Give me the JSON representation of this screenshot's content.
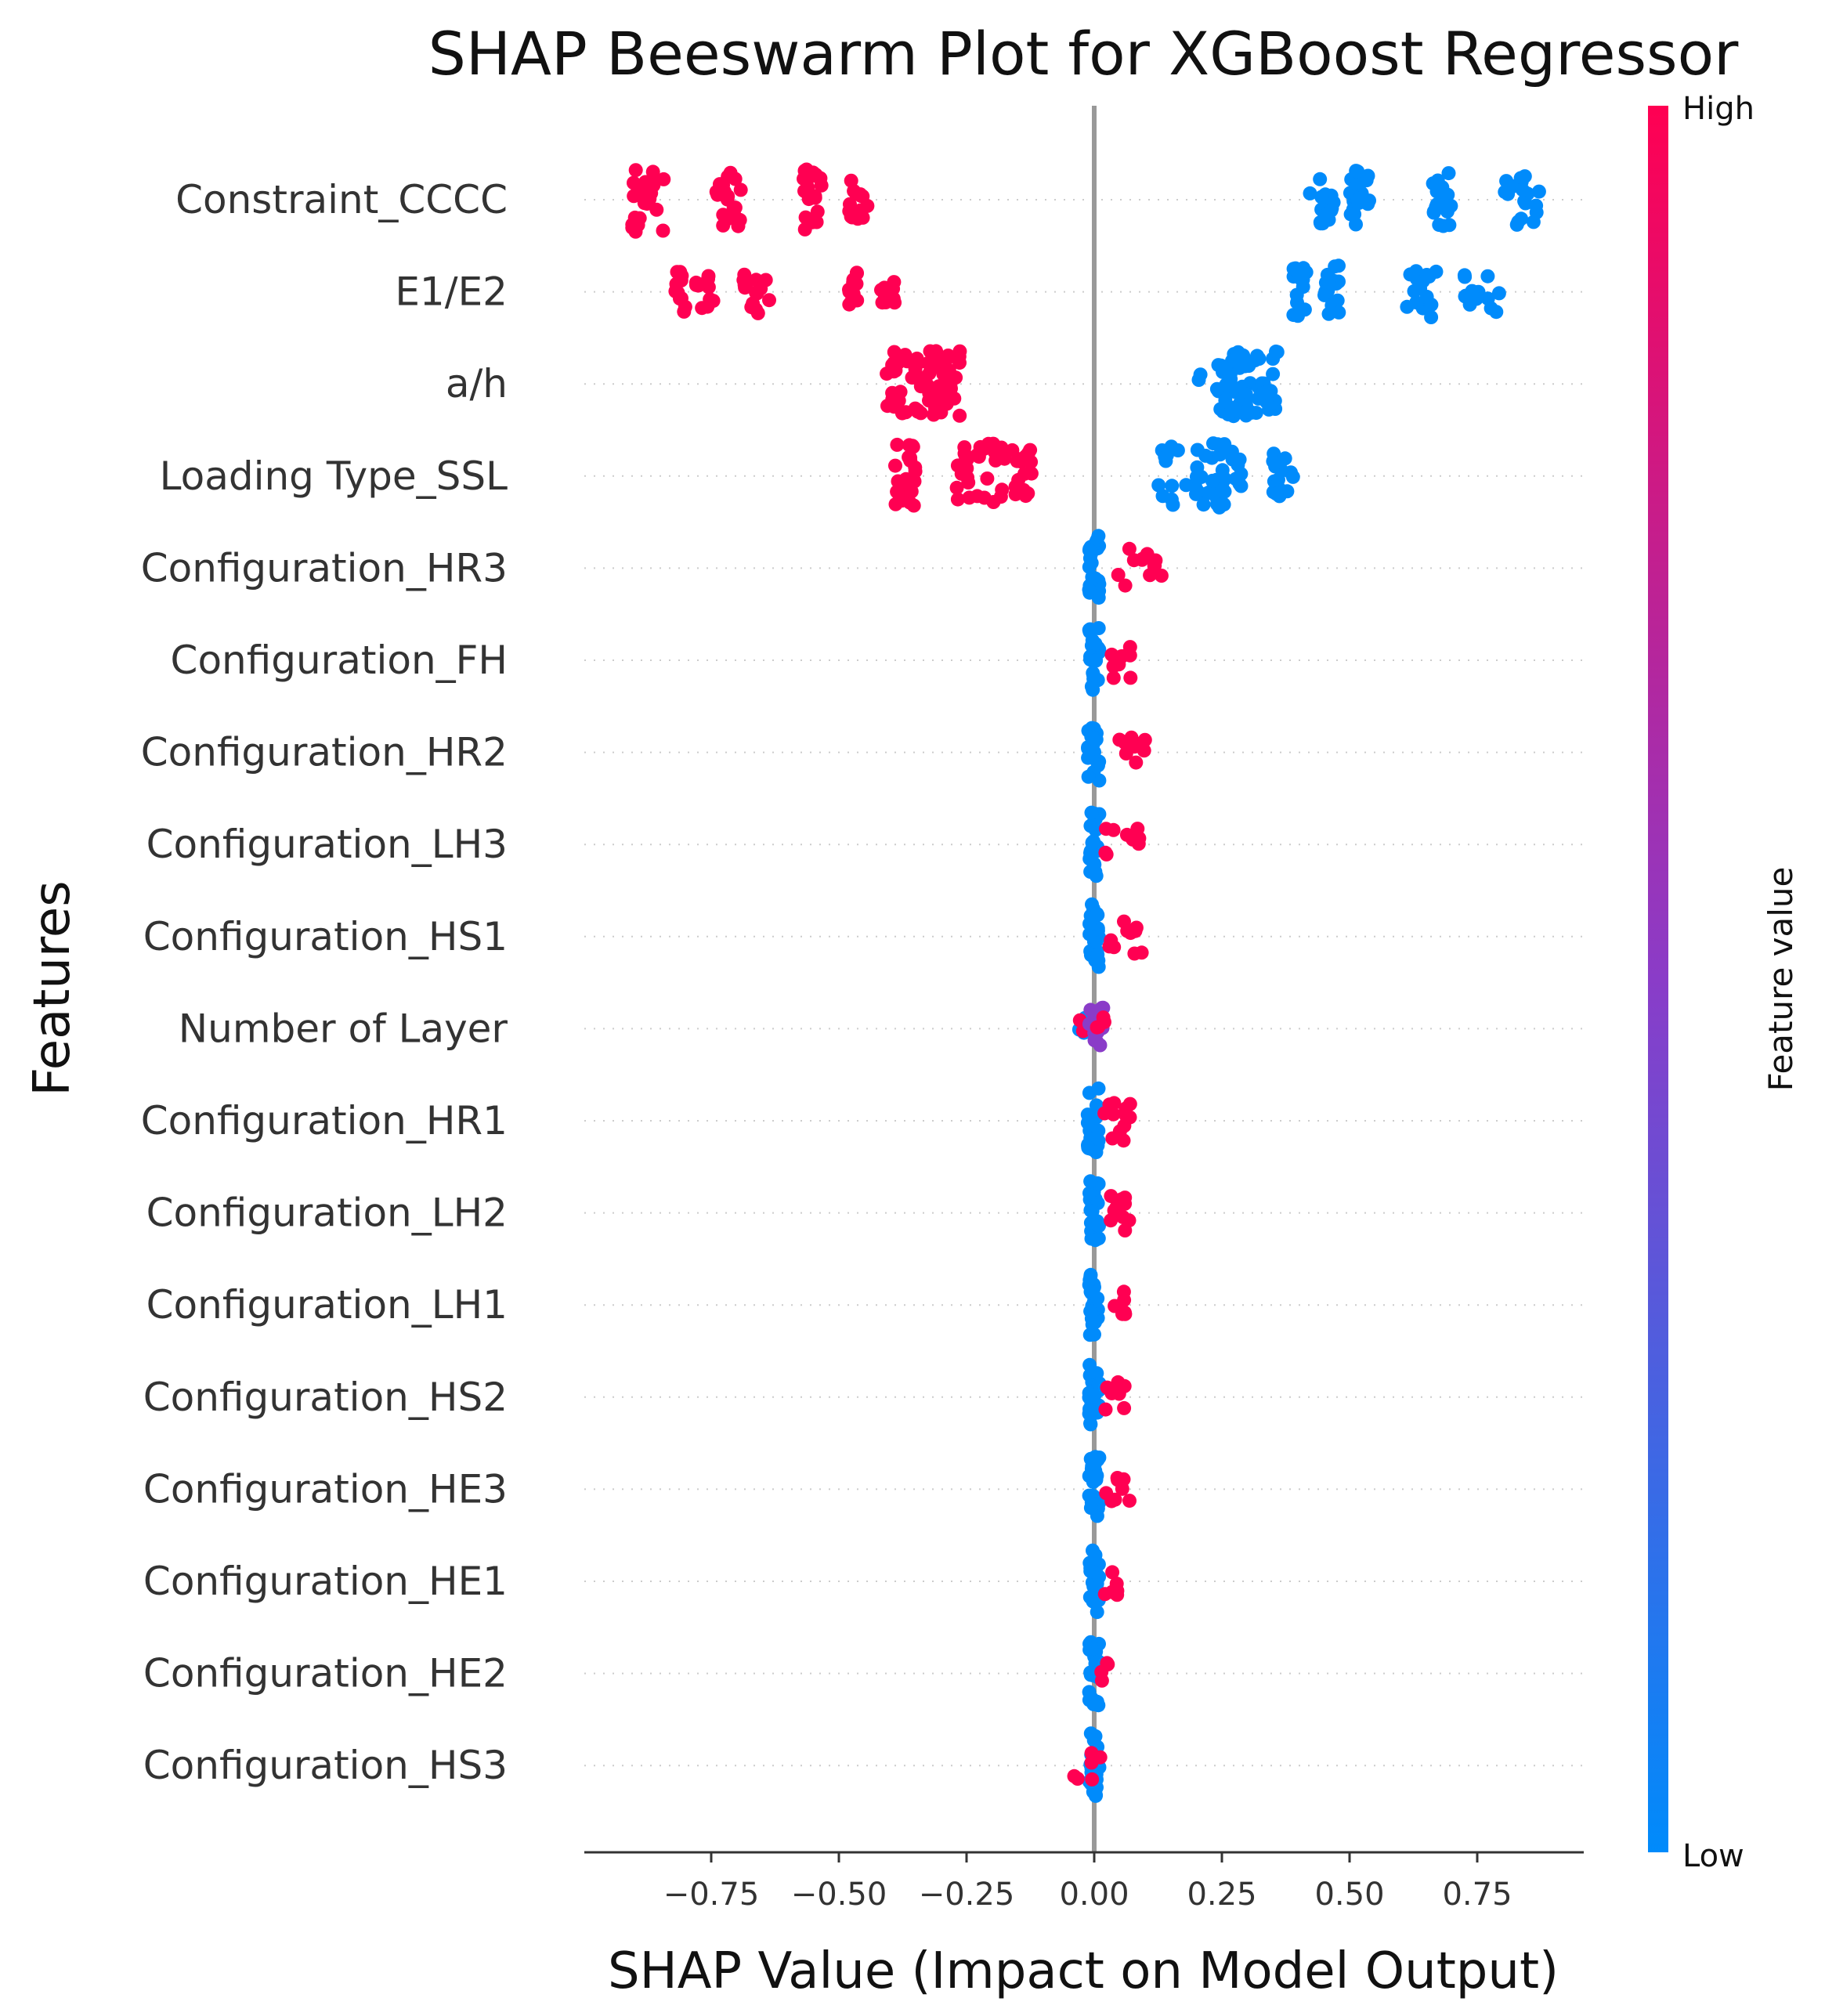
{
  "chart_data": {
    "type": "scatter",
    "subtype": "shap-beeswarm",
    "title": "SHAP Beeswarm Plot for XGBoost Regressor",
    "xlabel": "SHAP Value (Impact on Model Output)",
    "ylabel": "Features",
    "xlim": [
      -1.0,
      0.96
    ],
    "x_ticks": [
      -0.75,
      -0.5,
      -0.25,
      0.0,
      0.25,
      0.5,
      0.75
    ],
    "x_tick_labels": [
      "−0.75",
      "−0.50",
      "−0.25",
      "0.00",
      "0.25",
      "0.50",
      "0.75"
    ],
    "grid": "dotted row guides",
    "colorbar": {
      "title": "Feature value",
      "high_label": "High",
      "low_label": "Low",
      "high_color": "#ff0052",
      "mid_color": "#8a3cc8",
      "low_color": "#008bfb"
    },
    "features": [
      {
        "name": "Constraint_CCCC",
        "clusters": [
          {
            "x": [
              -0.91,
              -0.84
            ],
            "n": 26,
            "c": 1
          },
          {
            "x": [
              -0.74,
              -0.69
            ],
            "n": 20,
            "c": 1
          },
          {
            "x": [
              -0.57,
              -0.53
            ],
            "n": 22,
            "c": 1
          },
          {
            "x": [
              -0.48,
              -0.43
            ],
            "n": 14,
            "c": 1
          },
          {
            "x": [
              0.42,
              0.47
            ],
            "n": 16,
            "c": 0
          },
          {
            "x": [
              0.5,
              0.54
            ],
            "n": 22,
            "c": 0
          },
          {
            "x": [
              0.66,
              0.7
            ],
            "n": 20,
            "c": 0
          },
          {
            "x": [
              0.8,
              0.88
            ],
            "n": 18,
            "c": 0
          }
        ]
      },
      {
        "name": "E1/E2",
        "clusters": [
          {
            "x": [
              -0.82,
              -0.8
            ],
            "n": 12,
            "c": 1
          },
          {
            "x": [
              -0.78,
              -0.74
            ],
            "n": 10,
            "c": 1
          },
          {
            "x": [
              -0.69,
              -0.63
            ],
            "n": 16,
            "c": 1
          },
          {
            "x": [
              -0.48,
              -0.46
            ],
            "n": 14,
            "c": 1
          },
          {
            "x": [
              -0.42,
              -0.39
            ],
            "n": 10,
            "c": 1
          },
          {
            "x": [
              0.39,
              0.42
            ],
            "n": 16,
            "c": 0
          },
          {
            "x": [
              0.45,
              0.48
            ],
            "n": 18,
            "c": 0
          },
          {
            "x": [
              0.61,
              0.67
            ],
            "n": 18,
            "c": 0
          },
          {
            "x": [
              0.72,
              0.8
            ],
            "n": 14,
            "c": 0
          }
        ]
      },
      {
        "name": "a/h",
        "clusters": [
          {
            "x": [
              -0.41,
              -0.26
            ],
            "n": 70,
            "c": 1
          },
          {
            "x": [
              0.2,
              0.21
            ],
            "n": 2,
            "c": 0
          },
          {
            "x": [
              0.24,
              0.36
            ],
            "n": 64,
            "c": 0
          }
        ]
      },
      {
        "name": "Loading Type_SSL",
        "clusters": [
          {
            "x": [
              -0.39,
              -0.35
            ],
            "n": 24,
            "c": 1
          },
          {
            "x": [
              -0.27,
              -0.12
            ],
            "n": 46,
            "c": 1
          },
          {
            "x": [
              0.12,
              0.29
            ],
            "n": 50,
            "c": 0
          },
          {
            "x": [
              0.35,
              0.39
            ],
            "n": 16,
            "c": 0
          }
        ]
      },
      {
        "name": "Configuration_HR3",
        "clusters": [
          {
            "x": [
              -0.01,
              0.01
            ],
            "n": 24,
            "c": 0
          },
          {
            "x": [
              0.04,
              0.15
            ],
            "n": 12,
            "c": 1
          }
        ]
      },
      {
        "name": "Configuration_FH",
        "clusters": [
          {
            "x": [
              -0.01,
              0.01
            ],
            "n": 24,
            "c": 0
          },
          {
            "x": [
              0.03,
              0.08
            ],
            "n": 10,
            "c": 1
          }
        ]
      },
      {
        "name": "Configuration_HR2",
        "clusters": [
          {
            "x": [
              -0.015,
              0.01
            ],
            "n": 24,
            "c": 0
          },
          {
            "x": [
              0.04,
              0.1
            ],
            "n": 10,
            "c": 1
          }
        ]
      },
      {
        "name": "Configuration_LH3",
        "clusters": [
          {
            "x": [
              -0.01,
              0.01
            ],
            "n": 24,
            "c": 0
          },
          {
            "x": [
              0.02,
              0.09
            ],
            "n": 10,
            "c": 1
          }
        ]
      },
      {
        "name": "Configuration_HS1",
        "clusters": [
          {
            "x": [
              -0.01,
              0.01
            ],
            "n": 24,
            "c": 0
          },
          {
            "x": [
              0.02,
              0.1
            ],
            "n": 10,
            "c": 1
          }
        ]
      },
      {
        "name": "Number of Layer",
        "clusters": [
          {
            "x": [
              -0.03,
              -0.01
            ],
            "n": 4,
            "c": 0
          },
          {
            "x": [
              -0.03,
              -0.02
            ],
            "n": 2,
            "c": 1
          },
          {
            "x": [
              -0.01,
              0.02
            ],
            "n": 14,
            "c": 0.5
          },
          {
            "x": [
              0.0,
              0.02
            ],
            "n": 4,
            "c": 1
          }
        ]
      },
      {
        "name": "Configuration_HR1",
        "clusters": [
          {
            "x": [
              -0.015,
              0.01
            ],
            "n": 24,
            "c": 0
          },
          {
            "x": [
              0.02,
              0.08
            ],
            "n": 12,
            "c": 1
          }
        ]
      },
      {
        "name": "Configuration_LH2",
        "clusters": [
          {
            "x": [
              -0.01,
              0.01
            ],
            "n": 24,
            "c": 0
          },
          {
            "x": [
              0.02,
              0.08
            ],
            "n": 10,
            "c": 1
          }
        ]
      },
      {
        "name": "Configuration_LH1",
        "clusters": [
          {
            "x": [
              -0.01,
              0.01
            ],
            "n": 24,
            "c": 0
          },
          {
            "x": [
              0.02,
              0.07
            ],
            "n": 6,
            "c": 1
          }
        ]
      },
      {
        "name": "Configuration_HS2",
        "clusters": [
          {
            "x": [
              -0.01,
              0.01
            ],
            "n": 24,
            "c": 0
          },
          {
            "x": [
              0.02,
              0.06
            ],
            "n": 8,
            "c": 1
          }
        ]
      },
      {
        "name": "Configuration_HE3",
        "clusters": [
          {
            "x": [
              -0.01,
              0.01
            ],
            "n": 24,
            "c": 0
          },
          {
            "x": [
              0.02,
              0.07
            ],
            "n": 8,
            "c": 1
          }
        ]
      },
      {
        "name": "Configuration_HE1",
        "clusters": [
          {
            "x": [
              -0.01,
              0.01
            ],
            "n": 24,
            "c": 0
          },
          {
            "x": [
              0.02,
              0.05
            ],
            "n": 6,
            "c": 1
          }
        ]
      },
      {
        "name": "Configuration_HE2",
        "clusters": [
          {
            "x": [
              -0.01,
              0.01
            ],
            "n": 24,
            "c": 0
          },
          {
            "x": [
              0.01,
              0.04
            ],
            "n": 4,
            "c": 1
          }
        ]
      },
      {
        "name": "Configuration_HS3",
        "clusters": [
          {
            "x": [
              -0.01,
              0.01
            ],
            "n": 24,
            "c": 0
          },
          {
            "x": [
              -0.04,
              0.03
            ],
            "n": 6,
            "c": 1
          }
        ]
      }
    ]
  }
}
